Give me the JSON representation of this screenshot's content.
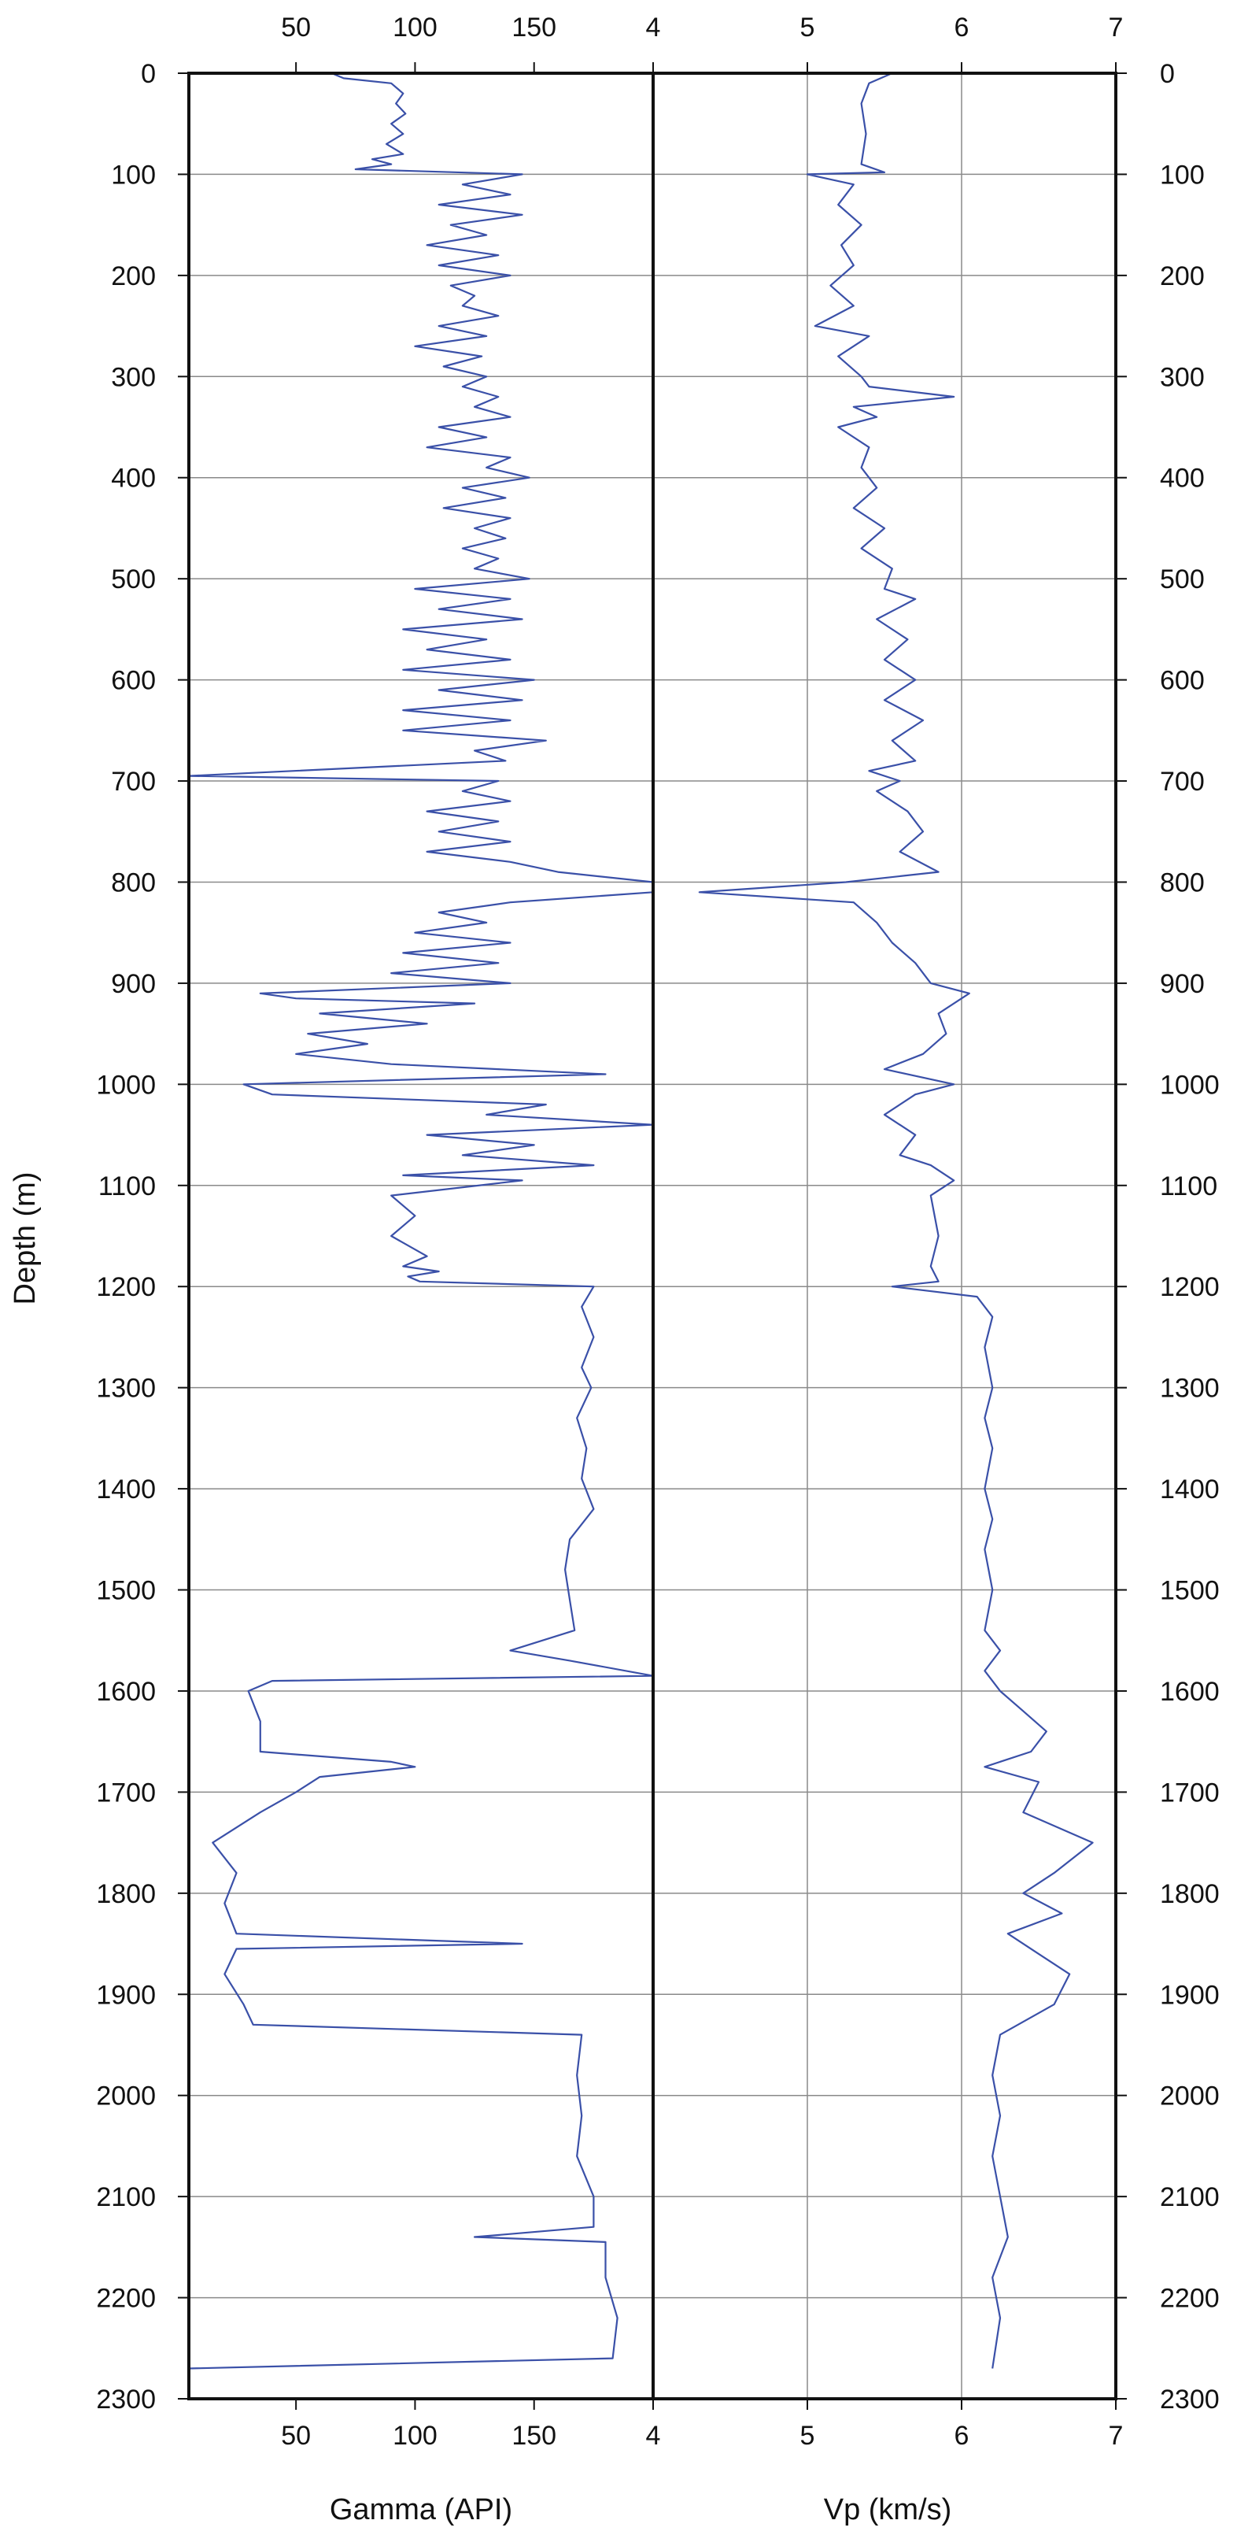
{
  "chart_data": [
    {
      "type": "line",
      "title": "",
      "xlabel": "Gamma (API)",
      "ylabel": "Depth (m)",
      "xlim": [
        5,
        200
      ],
      "ylim": [
        2300,
        0
      ],
      "x_ticks": [
        "50",
        "100",
        "150"
      ],
      "y_ticks": [
        "0",
        "100",
        "200",
        "300",
        "400",
        "500",
        "600",
        "700",
        "800",
        "900",
        "1000",
        "1100",
        "1200",
        "1300",
        "1400",
        "1500",
        "1600",
        "1700",
        "1800",
        "1900",
        "2000",
        "2100",
        "2200",
        "2300"
      ],
      "grid": "horizontal",
      "series": [
        {
          "points": [
            [
              65,
              0
            ],
            [
              70,
              5
            ],
            [
              90,
              10
            ],
            [
              95,
              20
            ],
            [
              92,
              30
            ],
            [
              96,
              40
            ],
            [
              90,
              50
            ],
            [
              95,
              60
            ],
            [
              88,
              70
            ],
            [
              95,
              80
            ],
            [
              82,
              85
            ],
            [
              90,
              90
            ],
            [
              75,
              95
            ],
            [
              145,
              100
            ],
            [
              120,
              110
            ],
            [
              140,
              120
            ],
            [
              110,
              130
            ],
            [
              145,
              140
            ],
            [
              115,
              150
            ],
            [
              130,
              160
            ],
            [
              105,
              170
            ],
            [
              135,
              180
            ],
            [
              110,
              190
            ],
            [
              140,
              200
            ],
            [
              115,
              210
            ],
            [
              125,
              220
            ],
            [
              120,
              230
            ],
            [
              135,
              240
            ],
            [
              110,
              250
            ],
            [
              130,
              260
            ],
            [
              100,
              270
            ],
            [
              128,
              280
            ],
            [
              112,
              290
            ],
            [
              130,
              300
            ],
            [
              120,
              310
            ],
            [
              135,
              320
            ],
            [
              125,
              330
            ],
            [
              140,
              340
            ],
            [
              110,
              350
            ],
            [
              130,
              360
            ],
            [
              105,
              370
            ],
            [
              140,
              380
            ],
            [
              130,
              390
            ],
            [
              148,
              400
            ],
            [
              120,
              410
            ],
            [
              138,
              420
            ],
            [
              112,
              430
            ],
            [
              140,
              440
            ],
            [
              125,
              450
            ],
            [
              138,
              460
            ],
            [
              120,
              470
            ],
            [
              135,
              480
            ],
            [
              125,
              490
            ],
            [
              148,
              500
            ],
            [
              100,
              510
            ],
            [
              140,
              520
            ],
            [
              110,
              530
            ],
            [
              145,
              540
            ],
            [
              95,
              550
            ],
            [
              130,
              560
            ],
            [
              105,
              570
            ],
            [
              140,
              580
            ],
            [
              95,
              590
            ],
            [
              150,
              600
            ],
            [
              110,
              610
            ],
            [
              145,
              620
            ],
            [
              95,
              630
            ],
            [
              140,
              640
            ],
            [
              95,
              650
            ],
            [
              155,
              660
            ],
            [
              125,
              670
            ],
            [
              138,
              680
            ],
            [
              5,
              695
            ],
            [
              135,
              700
            ],
            [
              120,
              710
            ],
            [
              140,
              720
            ],
            [
              105,
              730
            ],
            [
              135,
              740
            ],
            [
              110,
              750
            ],
            [
              140,
              760
            ],
            [
              105,
              770
            ],
            [
              140,
              780
            ],
            [
              160,
              790
            ],
            [
              200,
              800
            ],
            [
              200,
              810
            ],
            [
              140,
              820
            ],
            [
              110,
              830
            ],
            [
              130,
              840
            ],
            [
              100,
              850
            ],
            [
              140,
              860
            ],
            [
              95,
              870
            ],
            [
              135,
              880
            ],
            [
              90,
              890
            ],
            [
              140,
              900
            ],
            [
              35,
              910
            ],
            [
              50,
              915
            ],
            [
              125,
              920
            ],
            [
              60,
              930
            ],
            [
              105,
              940
            ],
            [
              55,
              950
            ],
            [
              80,
              960
            ],
            [
              50,
              970
            ],
            [
              90,
              980
            ],
            [
              180,
              990
            ],
            [
              28,
              1000
            ],
            [
              40,
              1010
            ],
            [
              155,
              1020
            ],
            [
              130,
              1030
            ],
            [
              200,
              1040
            ],
            [
              105,
              1050
            ],
            [
              150,
              1060
            ],
            [
              120,
              1070
            ],
            [
              175,
              1080
            ],
            [
              95,
              1090
            ],
            [
              145,
              1095
            ],
            [
              90,
              1110
            ],
            [
              100,
              1130
            ],
            [
              90,
              1150
            ],
            [
              105,
              1170
            ],
            [
              95,
              1180
            ],
            [
              110,
              1185
            ],
            [
              97,
              1190
            ],
            [
              102,
              1195
            ],
            [
              175,
              1200
            ],
            [
              170,
              1220
            ],
            [
              175,
              1250
            ],
            [
              170,
              1280
            ],
            [
              174,
              1300
            ],
            [
              168,
              1330
            ],
            [
              172,
              1360
            ],
            [
              170,
              1390
            ],
            [
              175,
              1420
            ],
            [
              165,
              1450
            ],
            [
              163,
              1480
            ],
            [
              165,
              1510
            ],
            [
              167,
              1540
            ],
            [
              140,
              1560
            ],
            [
              165,
              1570
            ],
            [
              200,
              1585
            ],
            [
              40,
              1590
            ],
            [
              30,
              1600
            ],
            [
              35,
              1630
            ],
            [
              35,
              1660
            ],
            [
              90,
              1670
            ],
            [
              100,
              1675
            ],
            [
              60,
              1685
            ],
            [
              50,
              1700
            ],
            [
              35,
              1720
            ],
            [
              15,
              1750
            ],
            [
              25,
              1780
            ],
            [
              20,
              1810
            ],
            [
              25,
              1840
            ],
            [
              145,
              1850
            ],
            [
              25,
              1855
            ],
            [
              20,
              1880
            ],
            [
              28,
              1910
            ],
            [
              32,
              1930
            ],
            [
              170,
              1940
            ],
            [
              168,
              1980
            ],
            [
              170,
              2020
            ],
            [
              168,
              2060
            ],
            [
              175,
              2100
            ],
            [
              175,
              2130
            ],
            [
              125,
              2140
            ],
            [
              180,
              2145
            ],
            [
              180,
              2180
            ],
            [
              185,
              2220
            ],
            [
              183,
              2260
            ],
            [
              5,
              2270
            ]
          ]
        }
      ]
    },
    {
      "type": "line",
      "title": "",
      "xlabel": "Vp (km/s)",
      "ylabel": "",
      "xlim": [
        4,
        7
      ],
      "ylim": [
        2300,
        0
      ],
      "x_ticks": [
        "4",
        "5",
        "6",
        "7"
      ],
      "y_ticks": [
        "0",
        "100",
        "200",
        "300",
        "400",
        "500",
        "600",
        "700",
        "800",
        "900",
        "1000",
        "1100",
        "1200",
        "1300",
        "1400",
        "1500",
        "1600",
        "1700",
        "1800",
        "1900",
        "2000",
        "2100",
        "2200",
        "2300"
      ],
      "grid": "both",
      "series": [
        {
          "points": [
            [
              5.55,
              0
            ],
            [
              5.4,
              10
            ],
            [
              5.35,
              30
            ],
            [
              5.38,
              60
            ],
            [
              5.35,
              90
            ],
            [
              5.5,
              98
            ],
            [
              5.0,
              100
            ],
            [
              5.3,
              110
            ],
            [
              5.2,
              130
            ],
            [
              5.35,
              150
            ],
            [
              5.22,
              170
            ],
            [
              5.3,
              190
            ],
            [
              5.15,
              210
            ],
            [
              5.3,
              230
            ],
            [
              5.05,
              250
            ],
            [
              5.4,
              260
            ],
            [
              5.2,
              280
            ],
            [
              5.35,
              300
            ],
            [
              5.4,
              310
            ],
            [
              5.95,
              320
            ],
            [
              5.3,
              330
            ],
            [
              5.45,
              340
            ],
            [
              5.2,
              350
            ],
            [
              5.4,
              370
            ],
            [
              5.35,
              390
            ],
            [
              5.45,
              410
            ],
            [
              5.3,
              430
            ],
            [
              5.5,
              450
            ],
            [
              5.35,
              470
            ],
            [
              5.55,
              490
            ],
            [
              5.5,
              510
            ],
            [
              5.7,
              520
            ],
            [
              5.45,
              540
            ],
            [
              5.65,
              560
            ],
            [
              5.5,
              580
            ],
            [
              5.7,
              600
            ],
            [
              5.5,
              620
            ],
            [
              5.75,
              640
            ],
            [
              5.55,
              660
            ],
            [
              5.7,
              680
            ],
            [
              5.4,
              690
            ],
            [
              5.6,
              700
            ],
            [
              5.45,
              710
            ],
            [
              5.65,
              730
            ],
            [
              5.75,
              750
            ],
            [
              5.6,
              770
            ],
            [
              5.85,
              790
            ],
            [
              5.25,
              800
            ],
            [
              4.3,
              810
            ],
            [
              5.3,
              820
            ],
            [
              5.45,
              840
            ],
            [
              5.55,
              860
            ],
            [
              5.7,
              880
            ],
            [
              5.8,
              900
            ],
            [
              6.05,
              910
            ],
            [
              5.85,
              930
            ],
            [
              5.9,
              950
            ],
            [
              5.75,
              970
            ],
            [
              5.5,
              985
            ],
            [
              5.95,
              1000
            ],
            [
              5.7,
              1010
            ],
            [
              5.5,
              1030
            ],
            [
              5.7,
              1050
            ],
            [
              5.6,
              1070
            ],
            [
              5.8,
              1080
            ],
            [
              5.95,
              1095
            ],
            [
              5.8,
              1110
            ],
            [
              5.85,
              1150
            ],
            [
              5.8,
              1180
            ],
            [
              5.85,
              1195
            ],
            [
              5.55,
              1200
            ],
            [
              6.1,
              1210
            ],
            [
              6.2,
              1230
            ],
            [
              6.15,
              1260
            ],
            [
              6.2,
              1300
            ],
            [
              6.15,
              1330
            ],
            [
              6.2,
              1360
            ],
            [
              6.15,
              1400
            ],
            [
              6.2,
              1430
            ],
            [
              6.15,
              1460
            ],
            [
              6.2,
              1500
            ],
            [
              6.15,
              1540
            ],
            [
              6.25,
              1560
            ],
            [
              6.15,
              1580
            ],
            [
              6.25,
              1600
            ],
            [
              6.4,
              1620
            ],
            [
              6.55,
              1640
            ],
            [
              6.45,
              1660
            ],
            [
              6.15,
              1675
            ],
            [
              6.5,
              1690
            ],
            [
              6.4,
              1720
            ],
            [
              6.85,
              1750
            ],
            [
              6.6,
              1780
            ],
            [
              6.4,
              1800
            ],
            [
              6.65,
              1820
            ],
            [
              6.3,
              1840
            ],
            [
              6.5,
              1860
            ],
            [
              6.7,
              1880
            ],
            [
              6.6,
              1910
            ],
            [
              6.25,
              1940
            ],
            [
              6.2,
              1980
            ],
            [
              6.25,
              2020
            ],
            [
              6.2,
              2060
            ],
            [
              6.25,
              2100
            ],
            [
              6.3,
              2140
            ],
            [
              6.2,
              2180
            ],
            [
              6.25,
              2220
            ],
            [
              6.2,
              2270
            ]
          ]
        }
      ]
    }
  ]
}
